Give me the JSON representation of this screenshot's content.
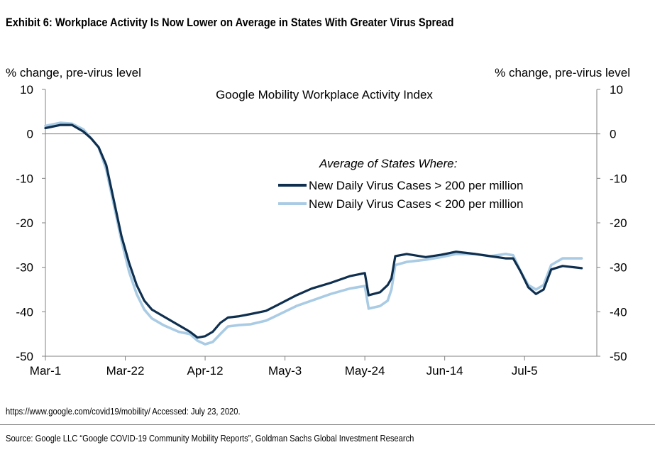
{
  "header": {
    "title": "Exhibit 6: Workplace Activity Is Now Lower on Average in States With Greater Virus Spread"
  },
  "footer": {
    "note": "https://www.google.com/covid19/mobility/ Accessed: July 23, 2020.",
    "source": "Source: Google LLC “Google COVID-19 Community Mobility Reports”, Goldman Sachs Global Investment Research"
  },
  "chart_data": {
    "type": "line",
    "title": "Google Mobility Workplace Activity Index",
    "ylabel_left": "% change, pre-virus level",
    "ylabel_right": "% change, pre-virus level",
    "legend_title": "Average of States Where:",
    "legend_placement": "center-right",
    "grid": false,
    "xlim": [
      "2020-03-01",
      "2020-07-24"
    ],
    "ylim": [
      -50,
      10
    ],
    "yticks": [
      10,
      0,
      -10,
      -20,
      -30,
      -40,
      -50
    ],
    "xticks": [
      {
        "date": "2020-03-01",
        "label": "Mar-1"
      },
      {
        "date": "2020-03-22",
        "label": "Mar-22"
      },
      {
        "date": "2020-04-12",
        "label": "Apr-12"
      },
      {
        "date": "2020-05-03",
        "label": "May-3"
      },
      {
        "date": "2020-05-24",
        "label": "May-24"
      },
      {
        "date": "2020-06-14",
        "label": "Jun-14"
      },
      {
        "date": "2020-07-05",
        "label": "Jul-5"
      }
    ],
    "x": [
      "2020-03-01",
      "2020-03-05",
      "2020-03-08",
      "2020-03-11",
      "2020-03-13",
      "2020-03-15",
      "2020-03-17",
      "2020-03-19",
      "2020-03-21",
      "2020-03-23",
      "2020-03-25",
      "2020-03-27",
      "2020-03-29",
      "2020-04-01",
      "2020-04-05",
      "2020-04-08",
      "2020-04-10",
      "2020-04-12",
      "2020-04-14",
      "2020-04-16",
      "2020-04-18",
      "2020-04-21",
      "2020-04-24",
      "2020-04-28",
      "2020-05-01",
      "2020-05-06",
      "2020-05-10",
      "2020-05-15",
      "2020-05-20",
      "2020-05-24",
      "2020-05-25",
      "2020-05-28",
      "2020-05-30",
      "2020-05-31",
      "2020-06-01",
      "2020-06-04",
      "2020-06-09",
      "2020-06-13",
      "2020-06-17",
      "2020-06-22",
      "2020-06-26",
      "2020-06-30",
      "2020-07-02",
      "2020-07-04",
      "2020-07-06",
      "2020-07-08",
      "2020-07-10",
      "2020-07-12",
      "2020-07-15",
      "2020-07-20"
    ],
    "series": [
      {
        "name": "New Daily Virus Cases > 200 per million",
        "color": "#0f2f4f",
        "values": [
          1.3,
          2,
          2,
          0.5,
          -1,
          -3,
          -7,
          -15,
          -23,
          -29,
          -34,
          -37.5,
          -39.5,
          -41,
          -43,
          -44.5,
          -45.8,
          -45.5,
          -44.5,
          -42.5,
          -41.3,
          -41,
          -40.5,
          -39.8,
          -38.5,
          -36.3,
          -34.8,
          -33.5,
          -32,
          -31.3,
          -36.3,
          -35.6,
          -34,
          -32.5,
          -27.5,
          -27,
          -27.7,
          -27.2,
          -26.5,
          -27,
          -27.5,
          -28,
          -28,
          -31,
          -34.5,
          -36,
          -35,
          -30.5,
          -29.7,
          -30.2
        ]
      },
      {
        "name": "New Daily Virus Cases < 200 per million",
        "color": "#a9cbe4",
        "values": [
          1.8,
          2.5,
          2.3,
          1,
          -1,
          -3,
          -8,
          -16,
          -24,
          -31,
          -36,
          -39.5,
          -41.5,
          -43,
          -44.5,
          -45,
          -46.5,
          -47.3,
          -46.8,
          -45,
          -43.3,
          -43,
          -42.8,
          -42,
          -40.8,
          -38.7,
          -37.5,
          -36,
          -34.8,
          -34.2,
          -39.3,
          -38.7,
          -37.5,
          -35,
          -29.5,
          -28.8,
          -28.3,
          -27.7,
          -27,
          -27,
          -27.5,
          -27,
          -27.3,
          -31,
          -34,
          -35,
          -34,
          -29.5,
          -28,
          -28
        ]
      }
    ]
  }
}
